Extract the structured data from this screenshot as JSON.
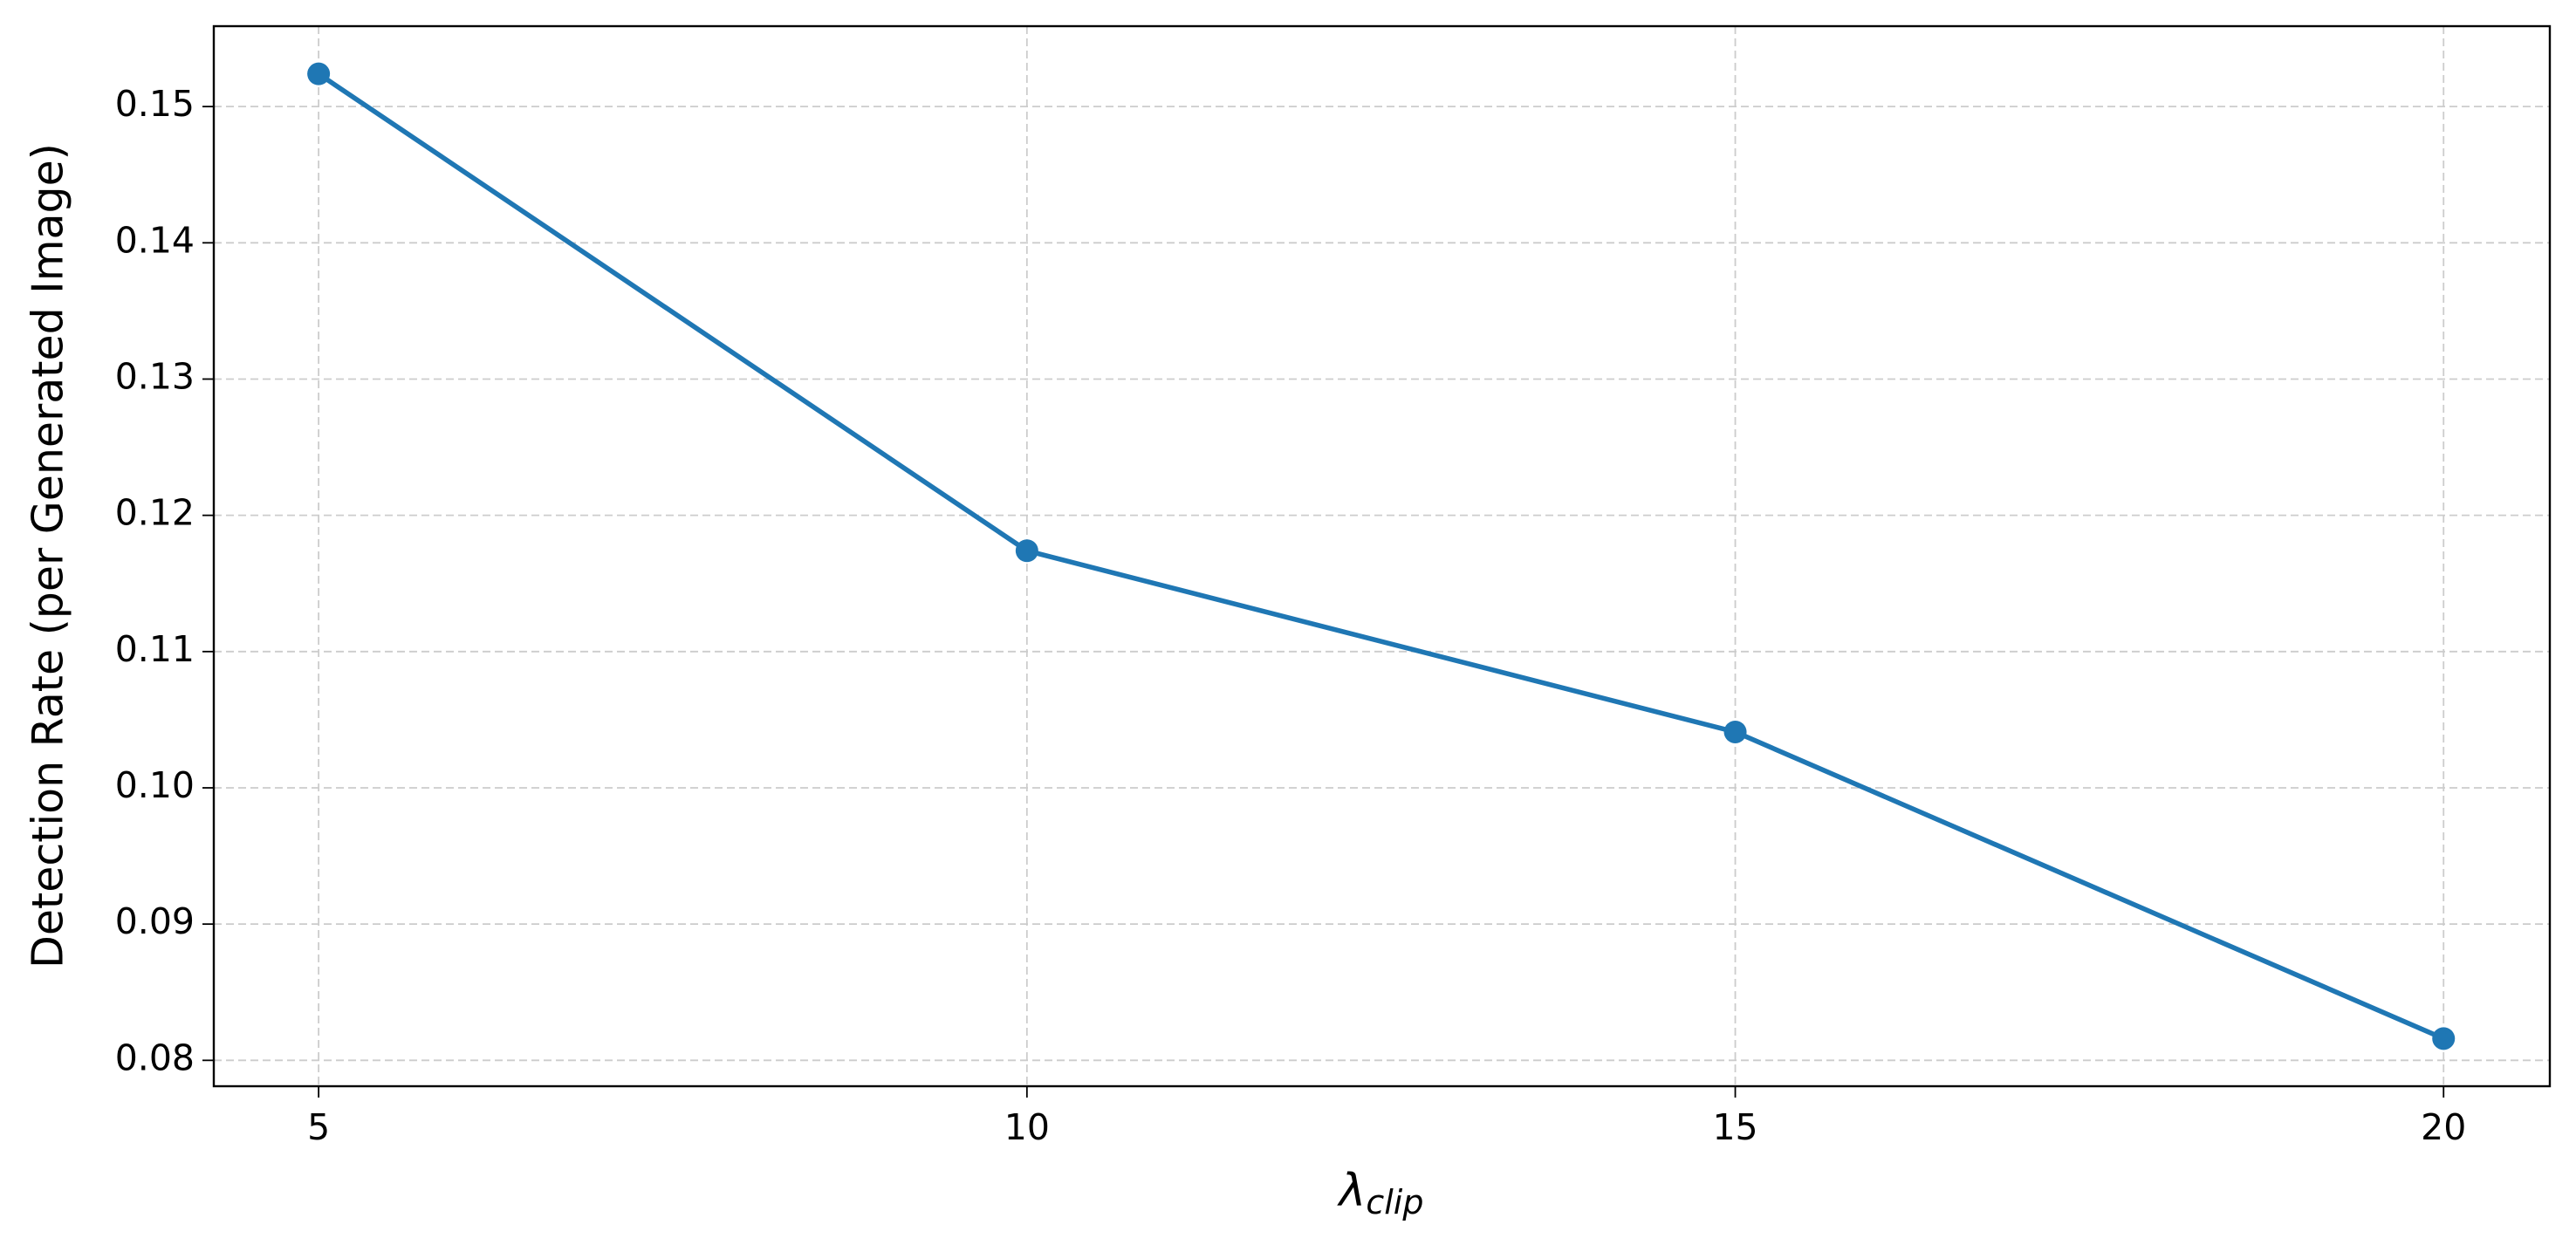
{
  "chart_data": {
    "type": "line",
    "x_label": {
      "base": "λ",
      "sub": "clip"
    },
    "y_label": "Detection Rate (per Generated Image)",
    "x": [
      5,
      10,
      15,
      20
    ],
    "series": [
      {
        "color": "#1f77b4",
        "values": [
          0.1524,
          0.1174,
          0.1041,
          0.0816
        ]
      }
    ],
    "xlim": [
      4.26,
      20.75
    ],
    "xticks": [
      5,
      10,
      15,
      20
    ],
    "ylim": [
      0.0781,
      0.1559
    ],
    "yticks": [
      0.08,
      0.09,
      {
        "value": 0.1,
        "label": "0.10"
      },
      0.11,
      0.12,
      0.13,
      0.14,
      0.15
    ],
    "grid": true,
    "markers": true
  }
}
